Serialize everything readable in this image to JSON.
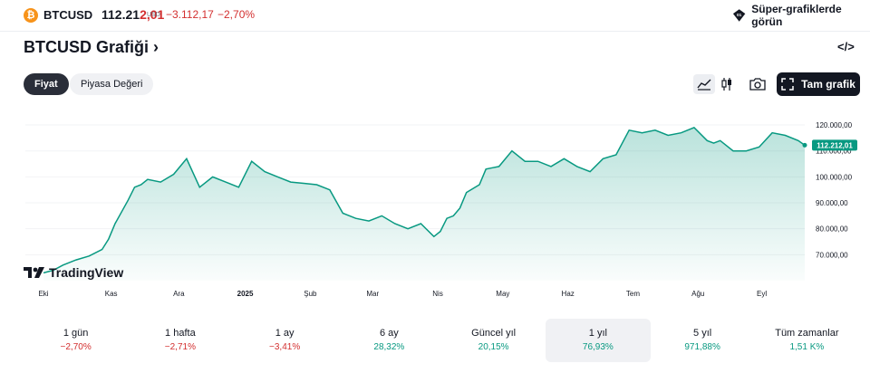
{
  "header": {
    "symbol": "BTCUSD",
    "price_main": "112.21",
    "price_tail": "2,01",
    "currency": "USD",
    "change": "−3.112,17",
    "change_pct": "−2,70%",
    "super_chart_label": "Süper-grafiklerde görün"
  },
  "page_title": "BTCUSD Grafiği",
  "tabs": [
    {
      "label": "Fiyat"
    },
    {
      "label": "Piyasa Değeri"
    }
  ],
  "full_chart_label": "Tam grafik",
  "logo_text": "TradingView",
  "colors": {
    "line": "#089981",
    "negative": "#d32f2f",
    "positive": "#089981",
    "accent": "#f7931a"
  },
  "chart_data": {
    "type": "area",
    "ylim": [
      60000,
      127000
    ],
    "y_ticks": [
      70000,
      80000,
      90000,
      100000,
      110000,
      120000
    ],
    "y_tick_labels": [
      "70.000,00",
      "80.000,00",
      "90.000,00",
      "100.000,00",
      "110.000,00",
      "120.000,00"
    ],
    "x_tick_labels": [
      "Eki",
      "Kas",
      "Ara",
      "2025",
      "Şub",
      "Mar",
      "Nis",
      "May",
      "Haz",
      "Tem",
      "Ağu",
      "Eyl"
    ],
    "x_tick_positions": [
      0,
      1.04,
      2.08,
      3.1,
      4.1,
      5.06,
      6.06,
      7.06,
      8.06,
      9.06,
      10.06,
      11.04
    ],
    "last_price_label": "112.212,01",
    "x": [
      0,
      0.15,
      0.3,
      0.5,
      0.7,
      0.9,
      1.0,
      1.1,
      1.3,
      1.4,
      1.5,
      1.6,
      1.8,
      2.0,
      2.2,
      2.4,
      2.6,
      2.8,
      3.0,
      3.2,
      3.4,
      3.6,
      3.8,
      4.0,
      4.2,
      4.4,
      4.6,
      4.8,
      5.0,
      5.2,
      5.4,
      5.6,
      5.8,
      6.0,
      6.1,
      6.2,
      6.3,
      6.4,
      6.5,
      6.7,
      6.8,
      6.9,
      7.0,
      7.2,
      7.4,
      7.6,
      7.8,
      8.0,
      8.2,
      8.4,
      8.6,
      8.8,
      9.0,
      9.2,
      9.4,
      9.6,
      9.8,
      10.0,
      10.2,
      10.3,
      10.4,
      10.6,
      10.8,
      11.0,
      11.2,
      11.4,
      11.6,
      11.7
    ],
    "y": [
      63000,
      64000,
      66000,
      68000,
      69500,
      72000,
      76000,
      82000,
      91000,
      96000,
      97000,
      99000,
      98000,
      101000,
      107000,
      96000,
      100000,
      98000,
      96000,
      106000,
      102000,
      100000,
      98000,
      97500,
      97000,
      95000,
      86000,
      84000,
      83000,
      85000,
      82000,
      80000,
      82000,
      77000,
      79000,
      84000,
      85000,
      88000,
      94000,
      97000,
      103000,
      103500,
      104000,
      110000,
      106000,
      106000,
      104000,
      107000,
      104000,
      102000,
      107000,
      108500,
      118000,
      117000,
      118000,
      116000,
      117000,
      119000,
      114000,
      113000,
      114000,
      110000,
      110000,
      111500,
      117000,
      116000,
      114000,
      112212
    ]
  },
  "periods": [
    {
      "label": "1 gün",
      "value": "−2,70%",
      "dir": "neg"
    },
    {
      "label": "1 hafta",
      "value": "−2,71%",
      "dir": "neg"
    },
    {
      "label": "1 ay",
      "value": "−3,41%",
      "dir": "neg"
    },
    {
      "label": "6 ay",
      "value": "28,32%",
      "dir": "pos"
    },
    {
      "label": "Güncel yıl",
      "value": "20,15%",
      "dir": "pos"
    },
    {
      "label": "1 yıl",
      "value": "76,93%",
      "dir": "pos"
    },
    {
      "label": "5 yıl",
      "value": "971,88%",
      "dir": "pos"
    },
    {
      "label": "Tüm zamanlar",
      "value": "1,51 K%",
      "dir": "pos"
    }
  ]
}
